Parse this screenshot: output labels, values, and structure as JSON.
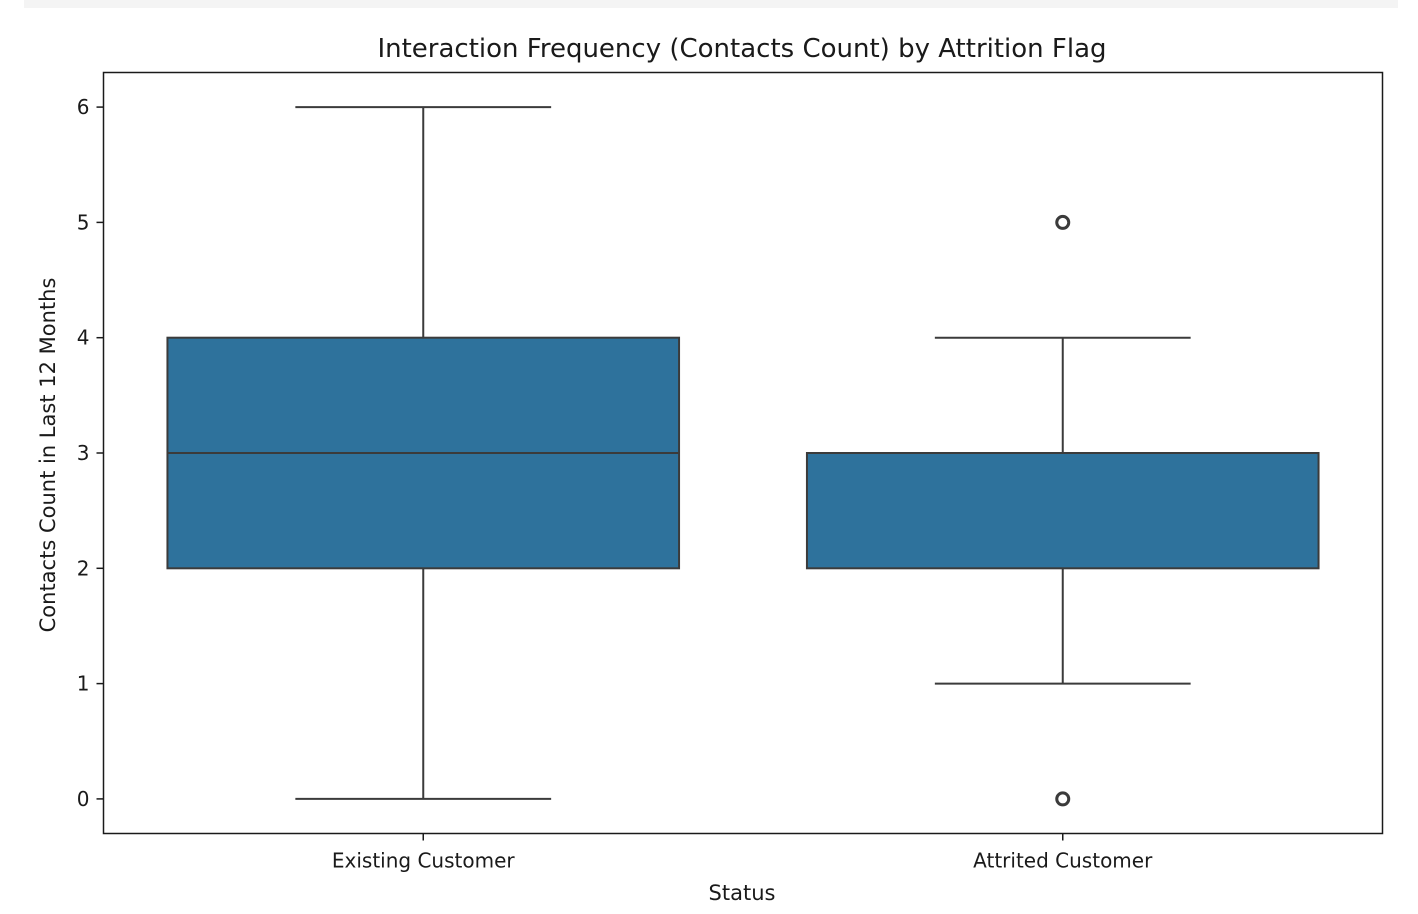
{
  "chart_data": {
    "type": "box",
    "title": "Interaction Frequency (Contacts Count) by Attrition Flag",
    "xlabel": "Status",
    "ylabel": "Contacts Count in Last 12 Months",
    "categories": [
      "Existing Customer",
      "Attrited Customer"
    ],
    "ylim": [
      -0.3,
      6.3
    ],
    "yticks": [
      0,
      1,
      2,
      3,
      4,
      5,
      6
    ],
    "box_color": "#2e729c",
    "series": [
      {
        "category": "Existing Customer",
        "whisker_low": 0,
        "q1": 2,
        "median": 3,
        "q3": 4,
        "whisker_high": 6,
        "outliers": []
      },
      {
        "category": "Attrited Customer",
        "whisker_low": 1,
        "q1": 2,
        "median": 3,
        "q3": 3,
        "whisker_high": 4,
        "outliers": [
          0,
          5
        ]
      }
    ]
  }
}
